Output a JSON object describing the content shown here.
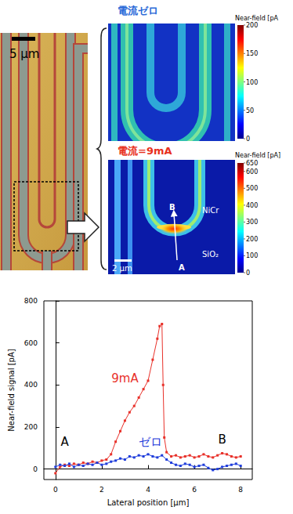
{
  "micrograph": {
    "scale_bar": "5 µm"
  },
  "near_field_maps": [
    {
      "title": {
        "text": "電流ゼロ",
        "color": "#2a6ad8"
      },
      "colorbar": {
        "label": "Near-field [pA",
        "range": [
          0,
          200
        ],
        "ticks": [
          0,
          50,
          100,
          150,
          200
        ]
      }
    },
    {
      "title": {
        "text": "電流=9mA",
        "color": "#e83020"
      },
      "colorbar": {
        "label": "Near-field [pA]",
        "range": [
          0,
          650
        ],
        "ticks": [
          0,
          100,
          200,
          300,
          400,
          500,
          600,
          650
        ]
      },
      "scale_bar": "2 µm",
      "labels": [
        "NiCr",
        "SiO₂"
      ],
      "path": {
        "start": "A",
        "end": "B"
      }
    }
  ],
  "chart_data": {
    "type": "line",
    "xlabel": "Lateral position [µm]",
    "ylabel": "Near-field signal [pA]",
    "xlim": [
      -0.5,
      8.5
    ],
    "ylim": [
      -50,
      800
    ],
    "xticks": [
      0,
      2,
      4,
      6,
      8
    ],
    "yticks": [
      0,
      200,
      400,
      600,
      800
    ],
    "grid": false,
    "series": [
      {
        "name": "9mA",
        "color": "#e8312a",
        "marker": "square",
        "x": [
          0,
          0.2,
          0.4,
          0.6,
          0.8,
          1.0,
          1.2,
          1.4,
          1.6,
          1.8,
          2.0,
          2.2,
          2.4,
          2.6,
          2.8,
          3.0,
          3.2,
          3.4,
          3.6,
          3.8,
          4.0,
          4.2,
          4.4,
          4.5,
          4.6,
          4.65,
          4.7,
          4.8,
          5.0,
          5.2,
          5.4,
          5.6,
          5.8,
          6.0,
          6.2,
          6.4,
          6.6,
          6.8,
          7.0,
          7.2,
          7.4,
          7.6,
          7.8,
          8.0
        ],
        "values": [
          -20,
          10,
          20,
          15,
          25,
          20,
          30,
          25,
          35,
          30,
          40,
          45,
          70,
          130,
          180,
          230,
          270,
          300,
          340,
          380,
          420,
          520,
          620,
          680,
          690,
          400,
          150,
          80,
          60,
          65,
          55,
          60,
          65,
          55,
          60,
          70,
          60,
          55,
          65,
          75,
          70,
          60,
          55,
          60
        ]
      },
      {
        "name": "ゼロ",
        "color": "#1f3ddb",
        "marker": "square",
        "x": [
          0,
          0.2,
          0.4,
          0.6,
          0.8,
          1.0,
          1.2,
          1.4,
          1.6,
          1.8,
          2.0,
          2.2,
          2.4,
          2.6,
          2.8,
          3.0,
          3.2,
          3.4,
          3.6,
          3.8,
          4.0,
          4.2,
          4.4,
          4.6,
          4.8,
          5.0,
          5.2,
          5.4,
          5.6,
          5.8,
          6.0,
          6.2,
          6.4,
          6.6,
          6.8,
          7.0,
          7.2,
          7.4,
          7.6,
          7.8,
          8.0
        ],
        "values": [
          10,
          20,
          15,
          25,
          10,
          20,
          15,
          25,
          20,
          30,
          20,
          25,
          35,
          40,
          50,
          45,
          60,
          55,
          65,
          60,
          70,
          60,
          55,
          65,
          45,
          30,
          20,
          15,
          25,
          20,
          10,
          15,
          20,
          5,
          -5,
          0,
          10,
          15,
          20,
          25,
          15
        ]
      }
    ],
    "annotations": [
      {
        "text": "9mA",
        "x": 3.0,
        "y": 430,
        "color": "#e8312a"
      },
      {
        "text": "ゼロ",
        "x": 4.1,
        "y": 130,
        "color": "#1f3ddb"
      },
      {
        "text": "A",
        "x": 0.4,
        "y": 130
      },
      {
        "text": "B",
        "x": 7.2,
        "y": 140
      }
    ]
  }
}
